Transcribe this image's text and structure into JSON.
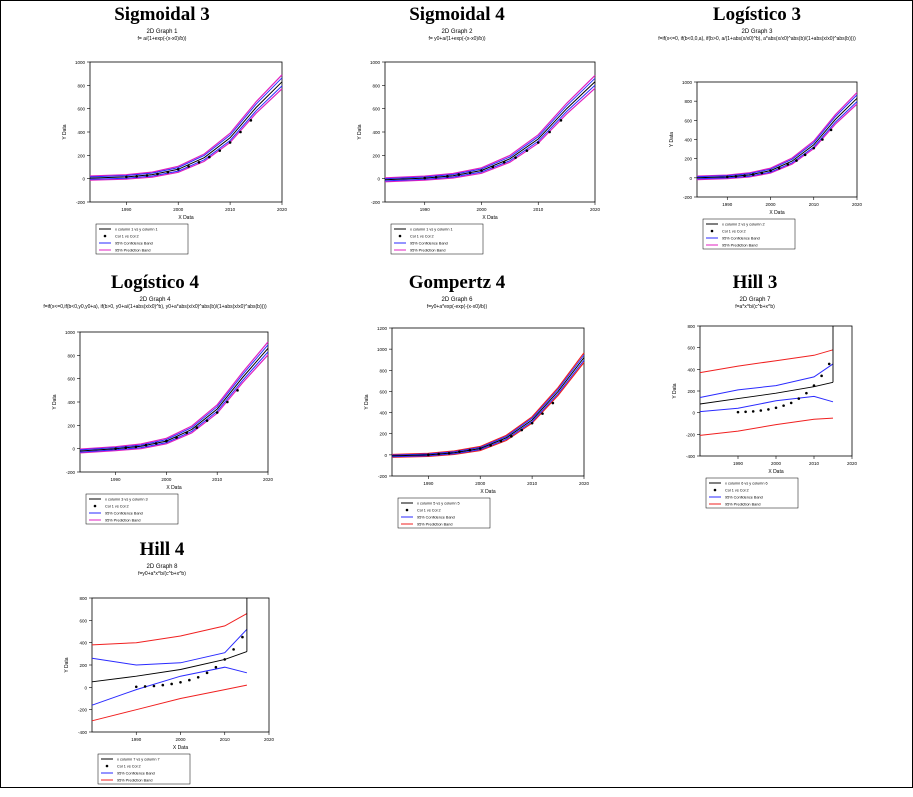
{
  "colors": {
    "fit": "#000000",
    "confidence": "#2a2aff",
    "prediction_magenta": "#e020c0",
    "prediction_red": "#f02020",
    "points": "#000000"
  },
  "chart_data": [
    {
      "type": "line",
      "title": "Sigmoidal 3",
      "subtitle": "2D Graph 1",
      "formula": "f= a/(1+exp(-(x-x0)/b))",
      "xlabel": "X Data",
      "ylabel": "Y Data",
      "xlim": [
        1983,
        2020
      ],
      "ylim": [
        -200,
        1000
      ],
      "xticks": [
        1990,
        2000,
        2010,
        2020
      ],
      "xtick_labels": [
        "1990",
        "2000",
        "2010",
        "2020"
      ],
      "yticks": [
        -200,
        0,
        200,
        400,
        600,
        800,
        1000
      ],
      "ytick_labels": [
        "-200",
        "0",
        "200",
        "400",
        "600",
        "800",
        "1000"
      ],
      "fit_x": [
        1983,
        1990,
        1995,
        2000,
        2005,
        2010,
        2015,
        2020
      ],
      "fit_y": [
        5,
        15,
        35,
        80,
        180,
        350,
        610,
        830
      ],
      "ci_band": 35,
      "pi_band": 60,
      "pi_color": "prediction_magenta",
      "points_x": [
        1990,
        1992,
        1994,
        1996,
        1998,
        2000,
        2002,
        2004,
        2006,
        2008,
        2010,
        2012,
        2014
      ],
      "points_y": [
        15,
        20,
        28,
        40,
        55,
        80,
        105,
        140,
        185,
        240,
        310,
        400,
        500
      ],
      "legend": [
        "x column 1 vs y column 1",
        "Col 1 vs Col 2",
        "95% Confidence Band",
        "95% Prediction Band"
      ]
    },
    {
      "type": "line",
      "title": "Sigmoidal 4",
      "subtitle": "2D Graph 2",
      "formula": "f= y0+a/(1+exp(-(x-x0)/b))",
      "xlabel": "X Data",
      "ylabel": "Y Data",
      "xlim": [
        1983,
        2020
      ],
      "ylim": [
        -200,
        1000
      ],
      "xticks": [
        1990,
        2000,
        2010,
        2020
      ],
      "xtick_labels": [
        "1990",
        "2000",
        "2010",
        "2020"
      ],
      "yticks": [
        -200,
        0,
        200,
        400,
        600,
        800,
        1000
      ],
      "ytick_labels": [
        "-200",
        "0",
        "200",
        "400",
        "600",
        "800",
        "1000"
      ],
      "fit_x": [
        1983,
        1990,
        1995,
        2000,
        2005,
        2010,
        2015,
        2020
      ],
      "fit_y": [
        -10,
        5,
        25,
        70,
        170,
        340,
        600,
        830
      ],
      "ci_band": 30,
      "pi_band": 55,
      "pi_color": "prediction_magenta",
      "points_x": [
        1990,
        1992,
        1994,
        1996,
        1998,
        2000,
        2002,
        2004,
        2006,
        2008,
        2010,
        2012,
        2014
      ],
      "points_y": [
        5,
        12,
        20,
        35,
        50,
        70,
        100,
        140,
        180,
        240,
        310,
        400,
        500
      ],
      "legend": [
        "x column 1 vs y column 1",
        "Col 1 vs Col 2",
        "95% Confidence Band",
        "95% Prediction Band"
      ]
    },
    {
      "type": "line",
      "title": "Logístico 3",
      "subtitle": "2D Graph 3",
      "formula": "f=if(x<=0, if(b<0,0,a), if(b>0, a/(1+abs(x/x0)^b), a*abs(x/x0)^abs(b)/(1+abs(x/x0)^abs(b))))",
      "xlabel": "X Data",
      "ylabel": "Y Data",
      "xlim": [
        1983,
        2020
      ],
      "ylim": [
        -200,
        1000
      ],
      "xticks": [
        1990,
        2000,
        2010,
        2020
      ],
      "xtick_labels": [
        "1990",
        "2000",
        "2010",
        "2020"
      ],
      "yticks": [
        -200,
        0,
        200,
        400,
        600,
        800,
        1000
      ],
      "ytick_labels": [
        "-200",
        "0",
        "200",
        "400",
        "600",
        "800",
        "1000"
      ],
      "fit_x": [
        1983,
        1990,
        1995,
        2000,
        2005,
        2010,
        2015,
        2020
      ],
      "fit_y": [
        0,
        10,
        30,
        75,
        175,
        345,
        610,
        830
      ],
      "ci_band": 35,
      "pi_band": 60,
      "pi_color": "prediction_magenta",
      "points_x": [
        1990,
        1992,
        1994,
        1996,
        1998,
        2000,
        2002,
        2004,
        2006,
        2008,
        2010,
        2012,
        2014
      ],
      "points_y": [
        10,
        15,
        22,
        35,
        50,
        75,
        100,
        140,
        180,
        240,
        310,
        400,
        500
      ],
      "legend": [
        "x column 2 vs y column 2",
        "Col 1 vs Col 2",
        "95% Confidence Band",
        "95% Prediction Band"
      ]
    },
    {
      "type": "line",
      "title": "Logístico 4",
      "subtitle": "2D Graph 4",
      "formula": "f=if(x<=0,if(b<0,y0,y0+a), if(b>0, y0+a/(1+abs(x/x0)^b), y0+a*abs(x/x0)^abs(b)/(1+abs(x/x0)^abs(b))))",
      "xlabel": "X Data",
      "ylabel": "Y Data",
      "xlim": [
        1983,
        2020
      ],
      "ylim": [
        -200,
        1000
      ],
      "xticks": [
        1990,
        2000,
        2010,
        2020
      ],
      "xtick_labels": [
        "1990",
        "2000",
        "2010",
        "2020"
      ],
      "yticks": [
        -200,
        0,
        200,
        400,
        600,
        800,
        1000
      ],
      "ytick_labels": [
        "-200",
        "0",
        "200",
        "400",
        "600",
        "800",
        "1000"
      ],
      "fit_x": [
        1983,
        1990,
        1995,
        2000,
        2005,
        2010,
        2015,
        2020
      ],
      "fit_y": [
        -20,
        0,
        20,
        65,
        165,
        340,
        610,
        860
      ],
      "ci_band": 30,
      "pi_band": 55,
      "pi_color": "prediction_magenta",
      "points_x": [
        1990,
        1992,
        1994,
        1996,
        1998,
        2000,
        2002,
        2004,
        2006,
        2008,
        2010,
        2012,
        2014
      ],
      "points_y": [
        0,
        8,
        15,
        30,
        45,
        65,
        95,
        135,
        180,
        240,
        310,
        400,
        500
      ],
      "legend": [
        "x column 3 vs y column 3",
        "Col 1 vs Col 2",
        "95% Confidence Band",
        "95% Prediction Band"
      ]
    },
    {
      "type": "line",
      "title": "Gompertz 4",
      "subtitle": "2D Graph 6",
      "formula": "f=y0+a*exp(-exp(-(x-x0)/b))",
      "xlabel": "X Data",
      "ylabel": "Y Data",
      "xlim": [
        1983,
        2020
      ],
      "ylim": [
        -200,
        1200
      ],
      "xticks": [
        1990,
        2000,
        2010,
        2020
      ],
      "xtick_labels": [
        "1990",
        "2000",
        "2010",
        "2020"
      ],
      "yticks": [
        -200,
        0,
        200,
        400,
        600,
        800,
        1000,
        1200
      ],
      "ytick_labels": [
        "-200",
        "0",
        "200",
        "400",
        "600",
        "800",
        "1000",
        "1200"
      ],
      "fit_x": [
        1983,
        1990,
        1995,
        2000,
        2005,
        2010,
        2015,
        2020
      ],
      "fit_y": [
        -10,
        0,
        20,
        60,
        160,
        330,
        600,
        920
      ],
      "ci_band": 25,
      "pi_band": 45,
      "pi_color": "prediction_red",
      "points_x": [
        1990,
        1992,
        1994,
        1996,
        1998,
        2000,
        2002,
        2004,
        2006,
        2008,
        2010,
        2012,
        2014
      ],
      "points_y": [
        0,
        8,
        15,
        30,
        45,
        60,
        90,
        130,
        175,
        235,
        300,
        390,
        490
      ],
      "legend": [
        "x column 5 vs y column 5",
        "Col 1 vs Col 2",
        "95% Confidence Band",
        "95% Prediction Band"
      ]
    },
    {
      "type": "line",
      "title": "Hill 3",
      "subtitle": "2D Graph 7",
      "formula": "f=a*x^b/(c^b+x^b)",
      "xlabel": "X Data",
      "ylabel": "Y Data",
      "xlim": [
        1980,
        2020
      ],
      "ylim": [
        -400,
        800
      ],
      "xticks": [
        1990,
        2000,
        2010,
        2020
      ],
      "xtick_labels": [
        "1990",
        "2000",
        "2010",
        "2020"
      ],
      "yticks": [
        -400,
        -200,
        0,
        200,
        400,
        600,
        800
      ],
      "ytick_labels": [
        "-400",
        "-200",
        "0",
        "200",
        "400",
        "600",
        "800"
      ],
      "fit_x": [
        1980,
        1990,
        2000,
        2010,
        2015
      ],
      "fit_y": [
        80,
        130,
        180,
        240,
        280
      ],
      "fit_tail": [
        [
          2015,
          280
        ],
        [
          2015,
          800
        ]
      ],
      "ci_upper_x": [
        1980,
        1990,
        2000,
        2010,
        2015
      ],
      "ci_upper_y": [
        140,
        210,
        250,
        330,
        450
      ],
      "ci_lower_x": [
        1980,
        1990,
        2000,
        2010,
        2015
      ],
      "ci_lower_y": [
        10,
        40,
        110,
        150,
        100
      ],
      "pi_upper_x": [
        1980,
        1990,
        2000,
        2010,
        2015
      ],
      "pi_upper_y": [
        370,
        430,
        480,
        530,
        580
      ],
      "pi_lower_x": [
        1980,
        1990,
        2000,
        2010,
        2015
      ],
      "pi_lower_y": [
        -210,
        -170,
        -110,
        -60,
        -50
      ],
      "pi_color": "prediction_red",
      "band_mode": "explicit",
      "points_x": [
        1990,
        1992,
        1994,
        1996,
        1998,
        2000,
        2002,
        2004,
        2006,
        2008,
        2010,
        2012,
        2014
      ],
      "points_y": [
        5,
        8,
        12,
        20,
        30,
        45,
        65,
        90,
        130,
        180,
        250,
        340,
        450
      ],
      "legend": [
        "x column 6 vs y column 6",
        "Col 1 vs Col 2",
        "95% Confidence Band",
        "95% Prediction Band"
      ]
    },
    {
      "type": "line",
      "title": "Hill 4",
      "subtitle": "2D Graph 8",
      "formula": "f=y0+a*x^b/(c^b+x^b)",
      "xlabel": "X Data",
      "ylabel": "Y Data",
      "xlim": [
        1980,
        2020
      ],
      "ylim": [
        -400,
        800
      ],
      "xticks": [
        1990,
        2000,
        2010,
        2020
      ],
      "xtick_labels": [
        "1990",
        "2000",
        "2010",
        "2020"
      ],
      "yticks": [
        -400,
        -200,
        0,
        200,
        400,
        600,
        800
      ],
      "ytick_labels": [
        "-400",
        "-200",
        "0",
        "200",
        "400",
        "600",
        "800"
      ],
      "fit_x": [
        1980,
        1990,
        2000,
        2010,
        2015
      ],
      "fit_y": [
        50,
        100,
        160,
        250,
        320
      ],
      "fit_tail": [
        [
          2015,
          320
        ],
        [
          2015,
          800
        ]
      ],
      "ci_upper_x": [
        1980,
        1990,
        2000,
        2010,
        2015
      ],
      "ci_upper_y": [
        260,
        200,
        220,
        310,
        520
      ],
      "ci_lower_x": [
        1980,
        1990,
        2000,
        2010,
        2015
      ],
      "ci_lower_y": [
        -160,
        -20,
        100,
        180,
        130
      ],
      "pi_upper_x": [
        1980,
        1990,
        2000,
        2010,
        2015
      ],
      "pi_upper_y": [
        380,
        400,
        460,
        550,
        660
      ],
      "pi_lower_x": [
        1980,
        1990,
        2000,
        2010,
        2015
      ],
      "pi_lower_y": [
        -300,
        -200,
        -100,
        -20,
        20
      ],
      "pi_color": "prediction_red",
      "band_mode": "explicit",
      "points_x": [
        1990,
        1992,
        1994,
        1996,
        1998,
        2000,
        2002,
        2004,
        2006,
        2008,
        2010,
        2012,
        2014
      ],
      "points_y": [
        5,
        8,
        12,
        20,
        30,
        45,
        65,
        90,
        130,
        180,
        250,
        340,
        450
      ],
      "legend": [
        "x column 7 vs y column 7",
        "Col 1 vs Col 2",
        "95% Confidence Band",
        "95% Prediction Band"
      ]
    }
  ]
}
